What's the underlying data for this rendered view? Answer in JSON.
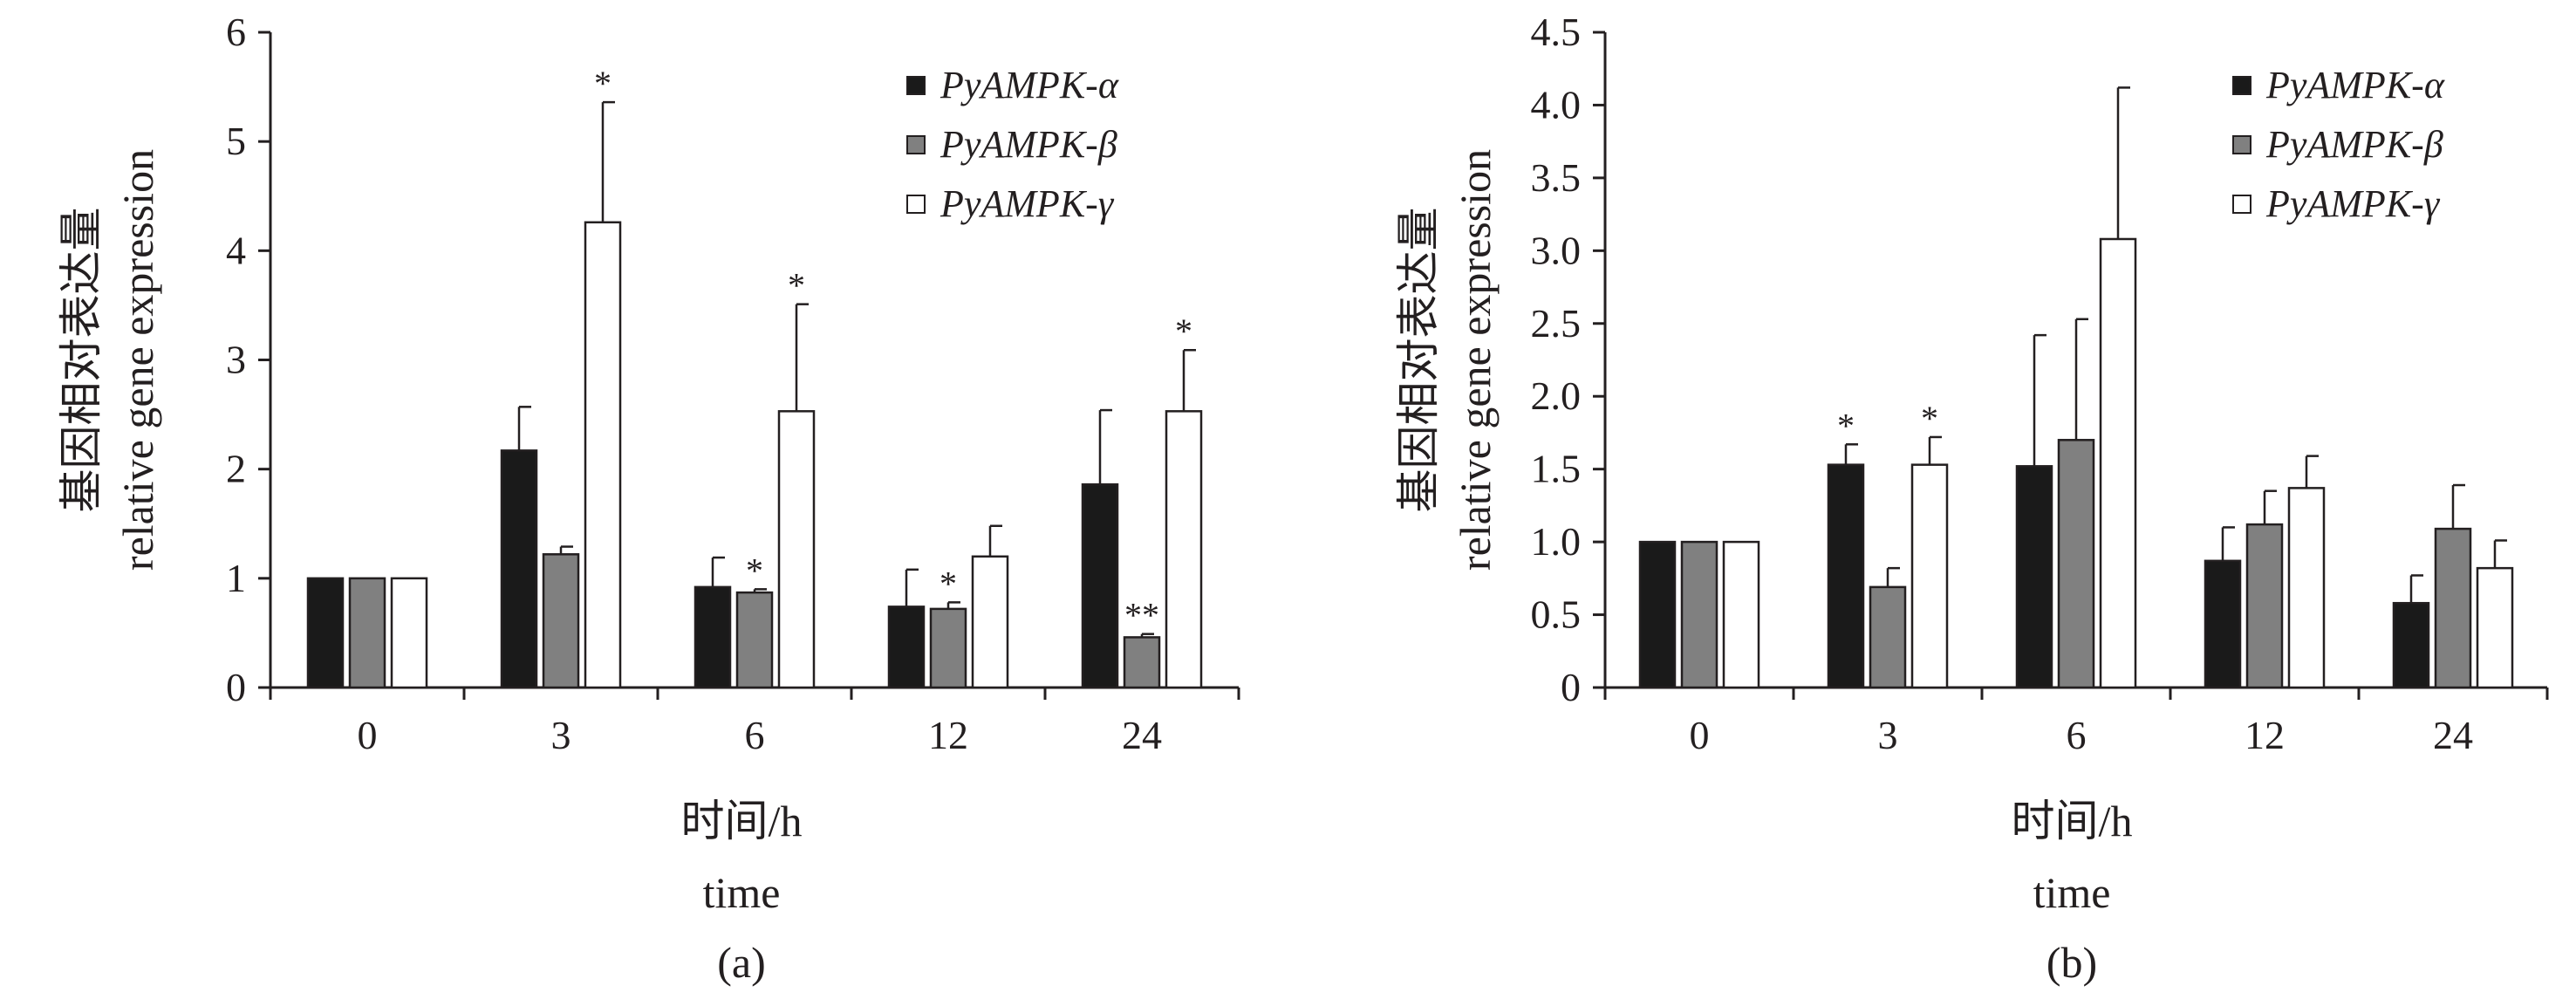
{
  "colors": {
    "alpha": "#1a1a1a",
    "beta": "#808080",
    "gamma": "#ffffff",
    "stroke": "#231f20"
  },
  "chart_data": [
    {
      "type": "bar",
      "panel_label": "(a)",
      "title": "",
      "ylabel_cn": "基因相对表达量",
      "ylabel": "relative gene expression",
      "xlabel_cn": "时间/h",
      "xlabel": "time",
      "categories": [
        "0",
        "3",
        "6",
        "12",
        "24"
      ],
      "ylim": [
        0,
        6
      ],
      "yticks": [
        "0",
        "1",
        "2",
        "3",
        "4",
        "5",
        "6"
      ],
      "legend_position": "top-right",
      "series": [
        {
          "name": "PyAMPK-α",
          "values": [
            1.0,
            2.17,
            0.92,
            0.74,
            1.86
          ],
          "errors": [
            0,
            0.4,
            0.27,
            0.34,
            0.68
          ],
          "sig": [
            "",
            "",
            "",
            "",
            ""
          ]
        },
        {
          "name": "PyAMPK-β",
          "values": [
            1.0,
            1.22,
            0.87,
            0.72,
            0.46
          ],
          "errors": [
            0,
            0.07,
            0.03,
            0.06,
            0.03
          ],
          "sig": [
            "",
            "",
            "*",
            "*",
            "**"
          ]
        },
        {
          "name": "PyAMPK-γ",
          "values": [
            1.0,
            4.26,
            2.53,
            1.2,
            2.53
          ],
          "errors": [
            0,
            1.1,
            0.98,
            0.28,
            0.56
          ],
          "sig": [
            "",
            "*",
            "*",
            "",
            "*"
          ]
        }
      ]
    },
    {
      "type": "bar",
      "panel_label": "(b)",
      "title": "",
      "ylabel_cn": "基因相对表达量",
      "ylabel": "relative gene expression",
      "xlabel_cn": "时间/h",
      "xlabel": "time",
      "categories": [
        "0",
        "3",
        "6",
        "12",
        "24"
      ],
      "ylim": [
        0,
        4.5
      ],
      "yticks": [
        "0",
        "0.5",
        "1.0",
        "1.5",
        "2.0",
        "2.5",
        "3.0",
        "3.5",
        "4.0",
        "4.5"
      ],
      "legend_position": "top-right",
      "series": [
        {
          "name": "PyAMPK-α",
          "values": [
            1.0,
            1.53,
            1.52,
            0.87,
            0.58
          ],
          "errors": [
            0,
            0.14,
            0.9,
            0.23,
            0.19
          ],
          "sig": [
            "",
            "*",
            "",
            "",
            ""
          ]
        },
        {
          "name": "PyAMPK-β",
          "values": [
            1.0,
            0.69,
            1.7,
            1.12,
            1.09
          ],
          "errors": [
            0,
            0.13,
            0.83,
            0.23,
            0.3
          ],
          "sig": [
            "",
            "",
            "",
            "",
            ""
          ]
        },
        {
          "name": "PyAMPK-γ",
          "values": [
            1.0,
            1.53,
            3.08,
            1.37,
            0.82
          ],
          "errors": [
            0,
            0.19,
            1.04,
            0.22,
            0.19
          ],
          "sig": [
            "",
            "*",
            "",
            "",
            ""
          ]
        }
      ]
    }
  ]
}
